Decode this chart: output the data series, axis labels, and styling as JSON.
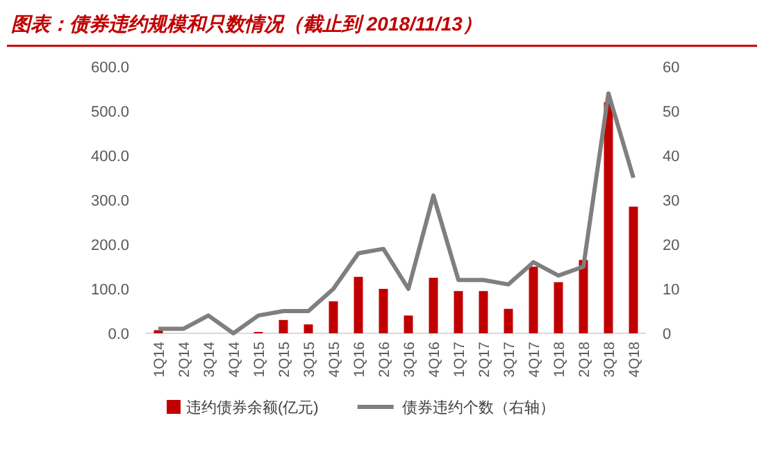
{
  "chart_data": {
    "type": "bar",
    "title": "图表：债券违约规模和只数情况（截止到 2018/11/13）",
    "categories": [
      "1Q14",
      "2Q14",
      "3Q14",
      "4Q14",
      "1Q15",
      "2Q15",
      "3Q15",
      "4Q15",
      "1Q16",
      "2Q16",
      "3Q16",
      "4Q16",
      "1Q17",
      "2Q17",
      "3Q17",
      "4Q17",
      "1Q18",
      "2Q18",
      "3Q18",
      "4Q18"
    ],
    "series": [
      {
        "name": "违约债券余额(亿元)",
        "color": "#c00000",
        "values": [
          7,
          0,
          0,
          0,
          3,
          30,
          20,
          72,
          127,
          100,
          40,
          125,
          95,
          95,
          55,
          150,
          115,
          165,
          520,
          285
        ]
      },
      {
        "name": "债券违约个数（右轴）",
        "type": "line",
        "axis": "y2",
        "color": "#7f7f7f",
        "values": [
          1,
          1,
          4,
          0,
          4,
          5,
          5,
          10,
          18,
          19,
          10,
          31,
          12,
          12,
          11,
          16,
          13,
          15,
          54,
          35
        ]
      }
    ],
    "ylim": [
      0,
      600
    ],
    "yticks": [
      {
        "value": 0,
        "label": "0.0"
      },
      {
        "value": 100,
        "label": "100.0"
      },
      {
        "value": 200,
        "label": "200.0"
      },
      {
        "value": 300,
        "label": "300.0"
      },
      {
        "value": 400,
        "label": "400.0"
      },
      {
        "value": 500,
        "label": "500.0"
      },
      {
        "value": 600,
        "label": "600.0"
      }
    ],
    "y2lim": [
      0,
      60
    ],
    "y2ticks": [
      0,
      10,
      20,
      30,
      40,
      50,
      60
    ],
    "legend": "bottom",
    "grid": false
  }
}
